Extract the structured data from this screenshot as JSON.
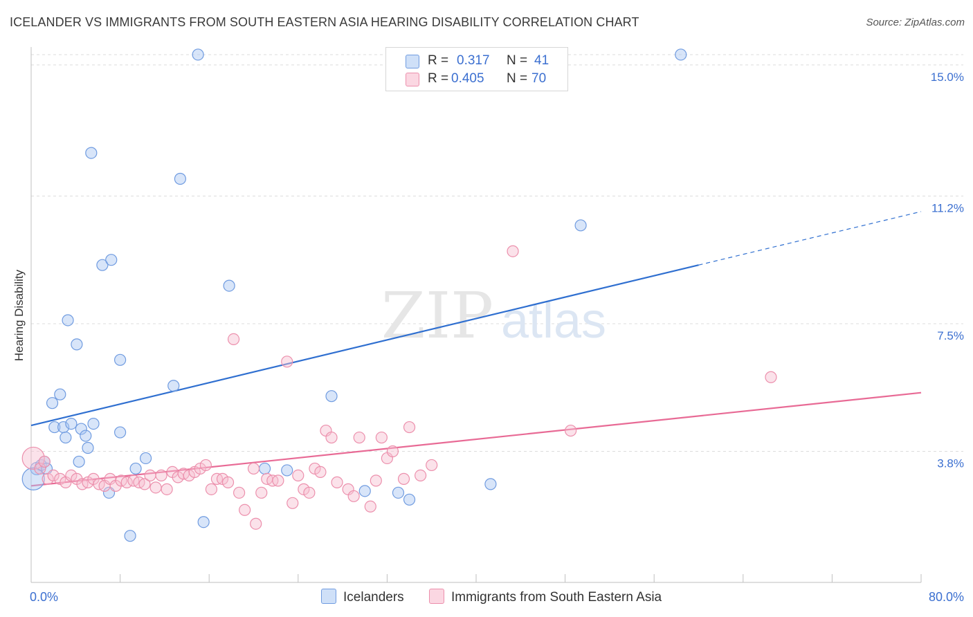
{
  "title": "ICELANDER VS IMMIGRANTS FROM SOUTH EASTERN ASIA HEARING DISABILITY CORRELATION CHART",
  "source": "Source: ZipAtlas.com",
  "watermark": {
    "zip": "ZIP",
    "atlas": "atlas"
  },
  "legend": {
    "r_label": "R =",
    "n_label": "N =",
    "rows": [
      {
        "name": "Icelanders",
        "r": "0.317",
        "n": "41",
        "color": "#a9c6f2",
        "stroke": "#6f9be0"
      },
      {
        "name": "Immigrants from South Eastern Asia",
        "r": "0.405",
        "n": "70",
        "color": "#f7bfd0",
        "stroke": "#ec8fac"
      }
    ]
  },
  "chart_data": {
    "type": "scatter",
    "title": "ICELANDER VS IMMIGRANTS FROM SOUTH EASTERN ASIA HEARING DISABILITY CORRELATION CHART",
    "xlabel": "",
    "ylabel": "Hearing Disability",
    "xlim": [
      0,
      80
    ],
    "ylim": [
      0,
      15.6
    ],
    "x_tick_labels": [
      "0.0%",
      "80.0%"
    ],
    "y_ticks": [
      3.8,
      7.5,
      11.2,
      15.0
    ],
    "y_tick_labels": [
      "3.8%",
      "7.5%",
      "11.2%",
      "15.0%"
    ],
    "grid": true,
    "legend_position": "top-center",
    "series": [
      {
        "name": "Icelanders",
        "color": "#6f9be0",
        "fill": "#a9c6f2",
        "trend_color": "#2f6fd0",
        "trend": {
          "x0": 0,
          "y0": 4.55,
          "x1": 60,
          "y1": 9.2,
          "dash_to_x": 80,
          "dash_to_y": 10.75
        },
        "points": [
          [
            0.5,
            3.3
          ],
          [
            0.9,
            3.4
          ],
          [
            1.2,
            3.5
          ],
          [
            1.4,
            3.3
          ],
          [
            1.9,
            5.2
          ],
          [
            2.1,
            4.5
          ],
          [
            2.6,
            5.45
          ],
          [
            2.9,
            4.5
          ],
          [
            3.1,
            4.2
          ],
          [
            3.3,
            7.6
          ],
          [
            3.6,
            4.6
          ],
          [
            4.1,
            6.9
          ],
          [
            4.3,
            3.5
          ],
          [
            4.5,
            4.45
          ],
          [
            4.9,
            4.25
          ],
          [
            5.1,
            3.9
          ],
          [
            5.4,
            12.45
          ],
          [
            5.6,
            4.6
          ],
          [
            6.4,
            9.2
          ],
          [
            7.0,
            2.6
          ],
          [
            7.2,
            9.35
          ],
          [
            8.0,
            4.35
          ],
          [
            8.0,
            6.45
          ],
          [
            8.9,
            1.35
          ],
          [
            9.4,
            3.3
          ],
          [
            10.3,
            3.6
          ],
          [
            12.8,
            5.7
          ],
          [
            13.4,
            11.7
          ],
          [
            15.0,
            15.3
          ],
          [
            15.5,
            1.75
          ],
          [
            17.8,
            8.6
          ],
          [
            21.0,
            3.3
          ],
          [
            23.0,
            3.25
          ],
          [
            27.0,
            5.4
          ],
          [
            30.0,
            2.65
          ],
          [
            33.0,
            2.6
          ],
          [
            34.0,
            2.4
          ],
          [
            41.3,
            2.85
          ],
          [
            49.4,
            10.35
          ],
          [
            58.4,
            15.3
          ],
          [
            0.2,
            3.0
          ]
        ],
        "sizes": {
          "0,0": 8,
          "40,0": 14
        }
      },
      {
        "name": "Immigrants from South Eastern Asia",
        "color": "#ec8fac",
        "fill": "#f7bfd0",
        "trend_color": "#e86a95",
        "trend": {
          "x0": 0,
          "y0": 2.8,
          "x1": 80,
          "y1": 5.5
        },
        "points": [
          [
            0.2,
            3.6
          ],
          [
            0.8,
            3.3
          ],
          [
            1.2,
            3.5
          ],
          [
            1.5,
            3.0
          ],
          [
            2.0,
            3.1
          ],
          [
            2.6,
            3.0
          ],
          [
            3.1,
            2.9
          ],
          [
            3.6,
            3.1
          ],
          [
            4.1,
            3.0
          ],
          [
            4.6,
            2.85
          ],
          [
            5.1,
            2.9
          ],
          [
            5.6,
            3.0
          ],
          [
            6.1,
            2.85
          ],
          [
            6.6,
            2.8
          ],
          [
            7.1,
            3.0
          ],
          [
            7.6,
            2.8
          ],
          [
            8.1,
            2.95
          ],
          [
            8.6,
            2.9
          ],
          [
            9.2,
            2.95
          ],
          [
            9.7,
            2.9
          ],
          [
            10.2,
            2.85
          ],
          [
            10.7,
            3.1
          ],
          [
            11.2,
            2.75
          ],
          [
            11.7,
            3.1
          ],
          [
            12.2,
            2.7
          ],
          [
            12.7,
            3.2
          ],
          [
            13.2,
            3.05
          ],
          [
            13.7,
            3.15
          ],
          [
            14.2,
            3.1
          ],
          [
            14.7,
            3.2
          ],
          [
            15.2,
            3.3
          ],
          [
            15.7,
            3.4
          ],
          [
            16.2,
            2.7
          ],
          [
            16.7,
            3.0
          ],
          [
            17.2,
            3.0
          ],
          [
            17.7,
            2.9
          ],
          [
            18.2,
            7.05
          ],
          [
            18.7,
            2.6
          ],
          [
            19.2,
            2.1
          ],
          [
            20.0,
            3.3
          ],
          [
            20.2,
            1.7
          ],
          [
            20.7,
            2.6
          ],
          [
            21.2,
            3.0
          ],
          [
            21.7,
            2.95
          ],
          [
            22.2,
            2.95
          ],
          [
            23.0,
            6.4
          ],
          [
            23.5,
            2.3
          ],
          [
            24.0,
            3.1
          ],
          [
            24.5,
            2.7
          ],
          [
            25.0,
            2.6
          ],
          [
            25.5,
            3.3
          ],
          [
            26.0,
            3.2
          ],
          [
            26.5,
            4.4
          ],
          [
            27.0,
            4.2
          ],
          [
            27.5,
            2.9
          ],
          [
            28.5,
            2.7
          ],
          [
            29.0,
            2.5
          ],
          [
            29.5,
            4.2
          ],
          [
            30.5,
            2.2
          ],
          [
            31.0,
            2.95
          ],
          [
            31.5,
            4.2
          ],
          [
            32.0,
            3.6
          ],
          [
            32.5,
            3.8
          ],
          [
            33.5,
            3.0
          ],
          [
            34.0,
            4.5
          ],
          [
            35.0,
            3.1
          ],
          [
            36.0,
            3.4
          ],
          [
            43.3,
            9.6
          ],
          [
            48.5,
            4.4
          ],
          [
            66.5,
            5.95
          ]
        ],
        "sizes": {
          "0,0": 14
        }
      }
    ]
  }
}
